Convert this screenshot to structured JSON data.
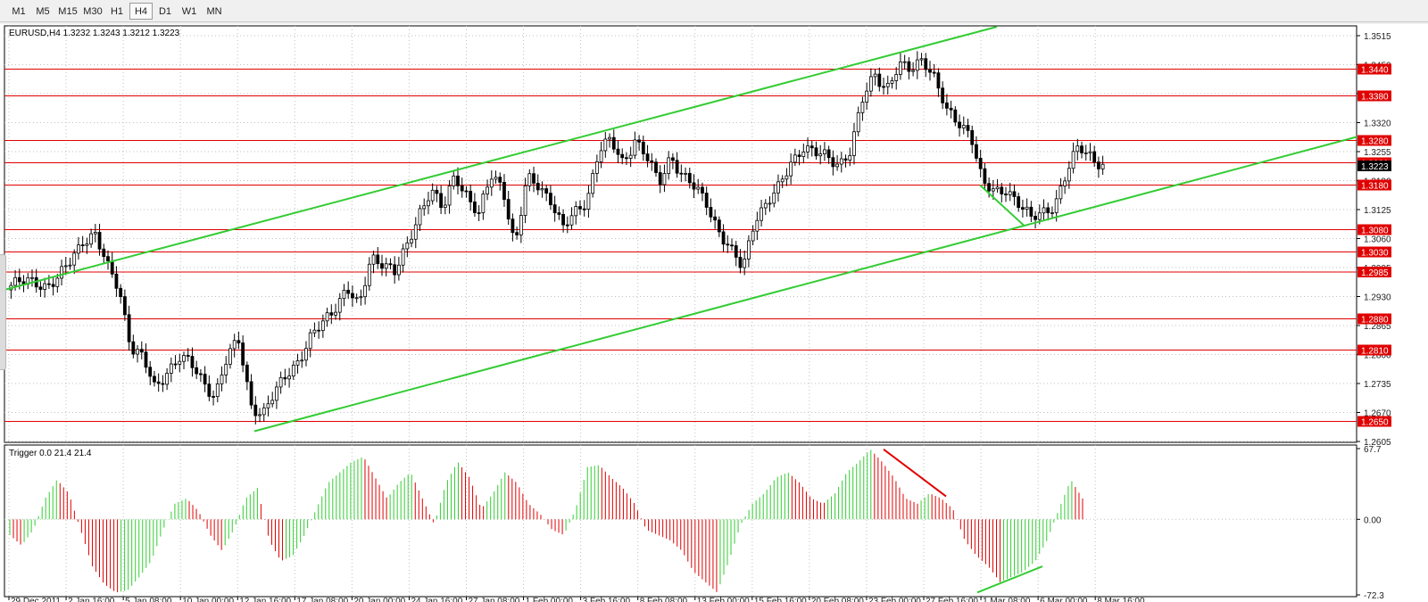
{
  "toolbar": {
    "timeframes": [
      "M1",
      "M5",
      "M15",
      "M30",
      "H1",
      "H4",
      "D1",
      "W1",
      "MN"
    ],
    "active": "H4"
  },
  "chart": {
    "symbol_info": "EURUSD,H4  1.3232 1.3243 1.3212 1.3223",
    "price_ticks": [
      "1.3515",
      "1.3450",
      "1.3385",
      "1.3320",
      "1.3255",
      "1.3190",
      "1.3125",
      "1.3060",
      "1.2995",
      "1.2930",
      "1.2865",
      "1.2800",
      "1.2735",
      "1.2670",
      "1.2605"
    ],
    "levels": [
      "1.3440",
      "1.3380",
      "1.3280",
      "1.3230",
      "1.3180",
      "1.3080",
      "1.3030",
      "1.2985",
      "1.2880",
      "1.2810",
      "1.2650"
    ],
    "current_price_label": "1.3223",
    "time_labels": [
      "29 Dec 2011",
      "2 Jan 16:00",
      "5 Jan 08:00",
      "10 Jan 00:00",
      "12 Jan 16:00",
      "17 Jan 08:00",
      "20 Jan 00:00",
      "24 Jan 16:00",
      "27 Jan 08:00",
      "1 Feb 00:00",
      "3 Feb 16:00",
      "8 Feb 08:00",
      "13 Feb 00:00",
      "15 Feb 16:00",
      "20 Feb 08:00",
      "23 Feb 00:00",
      "27 Feb 16:00",
      "1 Mar 08:00",
      "6 Mar 00:00",
      "8 Mar 16:00"
    ],
    "colors": {
      "level_line": "#e00000",
      "trend_line": "#33cc33",
      "bull_bar": "#32cd32",
      "bear_bar": "#e00000",
      "candle": "#000000"
    }
  },
  "indicator": {
    "label": "Trigger 0.0 21.4 21.4",
    "ticks": [
      "67.7",
      "0.00",
      "-72.3"
    ]
  },
  "chart_data": {
    "type": "candlestick",
    "symbol": "EURUSD",
    "timeframe": "H4",
    "ohlc_last": {
      "open": 1.3232,
      "high": 1.3243,
      "low": 1.3212,
      "close": 1.3223
    },
    "ylim": [
      1.2605,
      1.3535
    ],
    "x_labels": [
      "29 Dec 2011",
      "2 Jan 16:00",
      "5 Jan 08:00",
      "10 Jan 00:00",
      "12 Jan 16:00",
      "17 Jan 08:00",
      "20 Jan 00:00",
      "24 Jan 16:00",
      "27 Jan 08:00",
      "1 Feb 00:00",
      "3 Feb 16:00",
      "8 Feb 08:00",
      "13 Feb 00:00",
      "15 Feb 16:00",
      "20 Feb 08:00",
      "23 Feb 00:00",
      "27 Feb 16:00",
      "1 Mar 08:00",
      "6 Mar 00:00",
      "8 Mar 16:00"
    ],
    "price_path": [
      1.2955,
      1.296,
      1.2965,
      1.2955,
      1.297,
      1.301,
      1.306,
      1.307,
      1.2995,
      1.295,
      1.282,
      1.279,
      1.272,
      1.2765,
      1.2795,
      1.2775,
      1.274,
      1.271,
      1.279,
      1.283,
      1.269,
      1.2665,
      1.271,
      1.276,
      1.279,
      1.2835,
      1.287,
      1.291,
      1.295,
      1.29,
      1.302,
      1.301,
      1.298,
      1.304,
      1.312,
      1.317,
      1.312,
      1.3205,
      1.316,
      1.311,
      1.32,
      1.318,
      1.304,
      1.319,
      1.318,
      1.315,
      1.308,
      1.3115,
      1.315,
      1.326,
      1.3275,
      1.323,
      1.3285,
      1.324,
      1.318,
      1.325,
      1.32,
      1.317,
      1.314,
      1.308,
      1.303,
      1.299,
      1.311,
      1.314,
      1.317,
      1.323,
      1.327,
      1.325,
      1.324,
      1.323,
      1.326,
      1.337,
      1.343,
      1.34,
      1.3445,
      1.3435,
      1.347,
      1.342,
      1.334,
      1.332,
      1.33,
      1.318,
      1.316,
      1.3175,
      1.314,
      1.31,
      1.312,
      1.314,
      1.3205,
      1.3265,
      1.325,
      1.3223
    ],
    "levels": [
      1.344,
      1.338,
      1.328,
      1.323,
      1.318,
      1.308,
      1.303,
      1.2985,
      1.288,
      1.281,
      1.265
    ],
    "indicator": {
      "name": "Trigger",
      "ylim": [
        -72.3,
        67.7
      ],
      "values": [
        -15,
        -25,
        -10,
        20,
        38,
        25,
        -10,
        -45,
        -62,
        -70,
        -68,
        -55,
        -40,
        -10,
        15,
        20,
        8,
        -15,
        -30,
        -10,
        20,
        30,
        -20,
        -40,
        -35,
        -15,
        10,
        35,
        45,
        55,
        60,
        40,
        20,
        35,
        45,
        20,
        -5,
        35,
        55,
        40,
        10,
        25,
        45,
        35,
        15,
        5,
        -10,
        -15,
        10,
        50,
        52,
        40,
        30,
        15,
        -10,
        -15,
        -20,
        -30,
        -50,
        -60,
        -70,
        -40,
        -5,
        15,
        25,
        40,
        45,
        35,
        20,
        15,
        25,
        45,
        55,
        67,
        55,
        40,
        20,
        15,
        25,
        20,
        10,
        -20,
        -35,
        -45,
        -60,
        -55,
        -50,
        -40,
        -20,
        10,
        38,
        20
      ]
    }
  }
}
